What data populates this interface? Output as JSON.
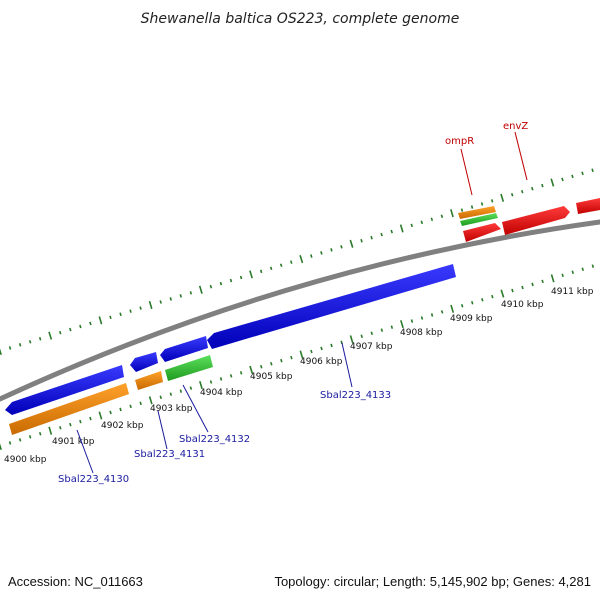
{
  "title": "Shewanella baltica OS223, complete genome",
  "footer": {
    "accession": "Accession: NC_011663",
    "topology": "Topology: circular; Length: 5,145,902 bp; Genes: 4,281"
  },
  "ruler": {
    "labels": [
      "4900 kbp",
      "4901 kbp",
      "4902 kbp",
      "4903 kbp",
      "4904 kbp",
      "4905 kbp",
      "4906 kbp",
      "4907 kbp",
      "4908 kbp",
      "4909 kbp",
      "4910 kbp",
      "4911 kbp"
    ]
  },
  "genes": {
    "blue": [
      "Sbal223_4130",
      "Sbal223_4131",
      "Sbal223_4132",
      "Sbal223_4133"
    ],
    "red": [
      "ompR",
      "envZ"
    ]
  },
  "colors": {
    "forward_cds": "#1010e0",
    "rna_orange": "#f08a10",
    "green": "#30c030",
    "red": "#ee1010",
    "backbone": "#808080",
    "tick": "#2a7a2a"
  }
}
